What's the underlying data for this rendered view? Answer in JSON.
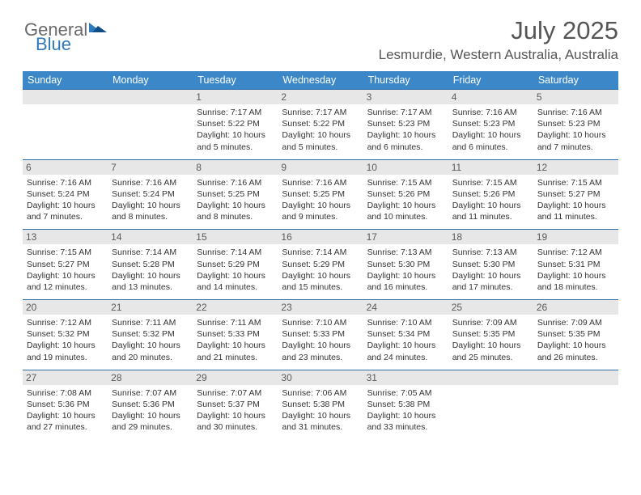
{
  "brand": {
    "part1": "General",
    "part2": "Blue"
  },
  "title": "July 2025",
  "location": "Lesmurdie, Western Australia, Australia",
  "colors": {
    "header_bg": "#3b87c8",
    "header_text": "#ffffff",
    "row_border": "#2f6ea8",
    "daynum_bg": "#e7e7e7",
    "text": "#333333",
    "brand_gray": "#6a6a6a",
    "brand_blue": "#2f79bd"
  },
  "weekdays": [
    "Sunday",
    "Monday",
    "Tuesday",
    "Wednesday",
    "Thursday",
    "Friday",
    "Saturday"
  ],
  "weeks": [
    [
      {
        "n": "",
        "l1": "",
        "l2": "",
        "l3": "",
        "l4": ""
      },
      {
        "n": "",
        "l1": "",
        "l2": "",
        "l3": "",
        "l4": ""
      },
      {
        "n": "1",
        "l1": "Sunrise: 7:17 AM",
        "l2": "Sunset: 5:22 PM",
        "l3": "Daylight: 10 hours",
        "l4": "and 5 minutes."
      },
      {
        "n": "2",
        "l1": "Sunrise: 7:17 AM",
        "l2": "Sunset: 5:22 PM",
        "l3": "Daylight: 10 hours",
        "l4": "and 5 minutes."
      },
      {
        "n": "3",
        "l1": "Sunrise: 7:17 AM",
        "l2": "Sunset: 5:23 PM",
        "l3": "Daylight: 10 hours",
        "l4": "and 6 minutes."
      },
      {
        "n": "4",
        "l1": "Sunrise: 7:16 AM",
        "l2": "Sunset: 5:23 PM",
        "l3": "Daylight: 10 hours",
        "l4": "and 6 minutes."
      },
      {
        "n": "5",
        "l1": "Sunrise: 7:16 AM",
        "l2": "Sunset: 5:23 PM",
        "l3": "Daylight: 10 hours",
        "l4": "and 7 minutes."
      }
    ],
    [
      {
        "n": "6",
        "l1": "Sunrise: 7:16 AM",
        "l2": "Sunset: 5:24 PM",
        "l3": "Daylight: 10 hours",
        "l4": "and 7 minutes."
      },
      {
        "n": "7",
        "l1": "Sunrise: 7:16 AM",
        "l2": "Sunset: 5:24 PM",
        "l3": "Daylight: 10 hours",
        "l4": "and 8 minutes."
      },
      {
        "n": "8",
        "l1": "Sunrise: 7:16 AM",
        "l2": "Sunset: 5:25 PM",
        "l3": "Daylight: 10 hours",
        "l4": "and 8 minutes."
      },
      {
        "n": "9",
        "l1": "Sunrise: 7:16 AM",
        "l2": "Sunset: 5:25 PM",
        "l3": "Daylight: 10 hours",
        "l4": "and 9 minutes."
      },
      {
        "n": "10",
        "l1": "Sunrise: 7:15 AM",
        "l2": "Sunset: 5:26 PM",
        "l3": "Daylight: 10 hours",
        "l4": "and 10 minutes."
      },
      {
        "n": "11",
        "l1": "Sunrise: 7:15 AM",
        "l2": "Sunset: 5:26 PM",
        "l3": "Daylight: 10 hours",
        "l4": "and 11 minutes."
      },
      {
        "n": "12",
        "l1": "Sunrise: 7:15 AM",
        "l2": "Sunset: 5:27 PM",
        "l3": "Daylight: 10 hours",
        "l4": "and 11 minutes."
      }
    ],
    [
      {
        "n": "13",
        "l1": "Sunrise: 7:15 AM",
        "l2": "Sunset: 5:27 PM",
        "l3": "Daylight: 10 hours",
        "l4": "and 12 minutes."
      },
      {
        "n": "14",
        "l1": "Sunrise: 7:14 AM",
        "l2": "Sunset: 5:28 PM",
        "l3": "Daylight: 10 hours",
        "l4": "and 13 minutes."
      },
      {
        "n": "15",
        "l1": "Sunrise: 7:14 AM",
        "l2": "Sunset: 5:29 PM",
        "l3": "Daylight: 10 hours",
        "l4": "and 14 minutes."
      },
      {
        "n": "16",
        "l1": "Sunrise: 7:14 AM",
        "l2": "Sunset: 5:29 PM",
        "l3": "Daylight: 10 hours",
        "l4": "and 15 minutes."
      },
      {
        "n": "17",
        "l1": "Sunrise: 7:13 AM",
        "l2": "Sunset: 5:30 PM",
        "l3": "Daylight: 10 hours",
        "l4": "and 16 minutes."
      },
      {
        "n": "18",
        "l1": "Sunrise: 7:13 AM",
        "l2": "Sunset: 5:30 PM",
        "l3": "Daylight: 10 hours",
        "l4": "and 17 minutes."
      },
      {
        "n": "19",
        "l1": "Sunrise: 7:12 AM",
        "l2": "Sunset: 5:31 PM",
        "l3": "Daylight: 10 hours",
        "l4": "and 18 minutes."
      }
    ],
    [
      {
        "n": "20",
        "l1": "Sunrise: 7:12 AM",
        "l2": "Sunset: 5:32 PM",
        "l3": "Daylight: 10 hours",
        "l4": "and 19 minutes."
      },
      {
        "n": "21",
        "l1": "Sunrise: 7:11 AM",
        "l2": "Sunset: 5:32 PM",
        "l3": "Daylight: 10 hours",
        "l4": "and 20 minutes."
      },
      {
        "n": "22",
        "l1": "Sunrise: 7:11 AM",
        "l2": "Sunset: 5:33 PM",
        "l3": "Daylight: 10 hours",
        "l4": "and 21 minutes."
      },
      {
        "n": "23",
        "l1": "Sunrise: 7:10 AM",
        "l2": "Sunset: 5:33 PM",
        "l3": "Daylight: 10 hours",
        "l4": "and 23 minutes."
      },
      {
        "n": "24",
        "l1": "Sunrise: 7:10 AM",
        "l2": "Sunset: 5:34 PM",
        "l3": "Daylight: 10 hours",
        "l4": "and 24 minutes."
      },
      {
        "n": "25",
        "l1": "Sunrise: 7:09 AM",
        "l2": "Sunset: 5:35 PM",
        "l3": "Daylight: 10 hours",
        "l4": "and 25 minutes."
      },
      {
        "n": "26",
        "l1": "Sunrise: 7:09 AM",
        "l2": "Sunset: 5:35 PM",
        "l3": "Daylight: 10 hours",
        "l4": "and 26 minutes."
      }
    ],
    [
      {
        "n": "27",
        "l1": "Sunrise: 7:08 AM",
        "l2": "Sunset: 5:36 PM",
        "l3": "Daylight: 10 hours",
        "l4": "and 27 minutes."
      },
      {
        "n": "28",
        "l1": "Sunrise: 7:07 AM",
        "l2": "Sunset: 5:36 PM",
        "l3": "Daylight: 10 hours",
        "l4": "and 29 minutes."
      },
      {
        "n": "29",
        "l1": "Sunrise: 7:07 AM",
        "l2": "Sunset: 5:37 PM",
        "l3": "Daylight: 10 hours",
        "l4": "and 30 minutes."
      },
      {
        "n": "30",
        "l1": "Sunrise: 7:06 AM",
        "l2": "Sunset: 5:38 PM",
        "l3": "Daylight: 10 hours",
        "l4": "and 31 minutes."
      },
      {
        "n": "31",
        "l1": "Sunrise: 7:05 AM",
        "l2": "Sunset: 5:38 PM",
        "l3": "Daylight: 10 hours",
        "l4": "and 33 minutes."
      },
      {
        "n": "",
        "l1": "",
        "l2": "",
        "l3": "",
        "l4": ""
      },
      {
        "n": "",
        "l1": "",
        "l2": "",
        "l3": "",
        "l4": ""
      }
    ]
  ]
}
